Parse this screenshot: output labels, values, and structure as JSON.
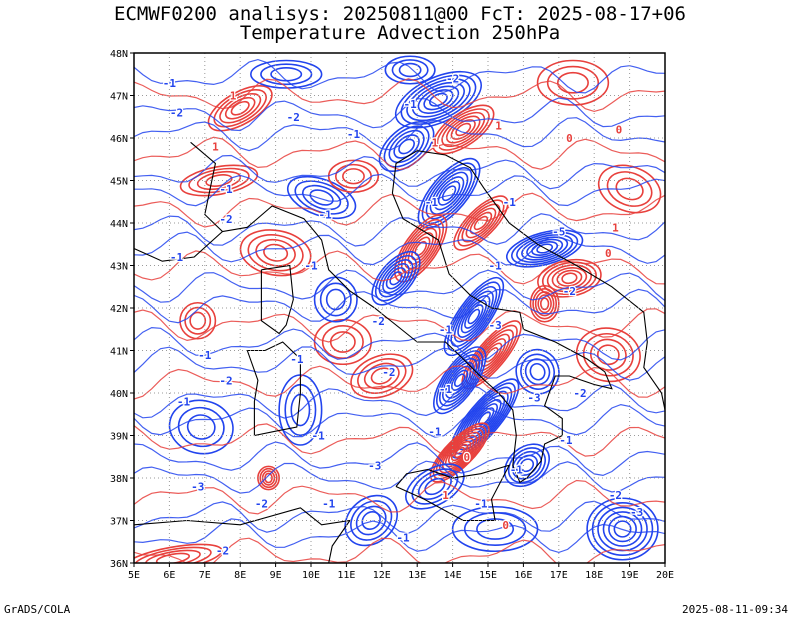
{
  "title_line1": "ECMWF0200 analisys: 20250811@00 FcT: 2025-08-17+06",
  "title_line2": "Temperature Advection 250hPa",
  "footer_left": "GrADS/COLA",
  "footer_right": "2025-08-11-09:34",
  "map": {
    "lon_range": [
      5,
      20
    ],
    "lat_range": [
      36,
      48
    ],
    "lon_ticks": [
      "5E",
      "6E",
      "7E",
      "8E",
      "9E",
      "10E",
      "11E",
      "12E",
      "13E",
      "14E",
      "15E",
      "16E",
      "17E",
      "18E",
      "19E",
      "20E"
    ],
    "lat_ticks": [
      "36N",
      "37N",
      "38N",
      "39N",
      "40N",
      "41N",
      "42N",
      "43N",
      "44N",
      "45N",
      "46N",
      "47N",
      "48N"
    ],
    "grid": "dotted",
    "colors": {
      "positive": "#e8403c",
      "negative": "#2244ee",
      "coast": "#000000",
      "grid": "#9a9a9a"
    }
  },
  "contour_labels": [
    {
      "t": "-1",
      "lon": 6.0,
      "lat": 47.3
    },
    {
      "t": "1",
      "lon": 7.8,
      "lat": 47.0
    },
    {
      "t": "-2",
      "lon": 6.2,
      "lat": 46.6
    },
    {
      "t": "1",
      "lon": 7.3,
      "lat": 45.8
    },
    {
      "t": "-2",
      "lon": 9.5,
      "lat": 46.5
    },
    {
      "t": "-1",
      "lon": 11.2,
      "lat": 46.1
    },
    {
      "t": "-1",
      "lon": 12.8,
      "lat": 46.8
    },
    {
      "t": "-2",
      "lon": 14.0,
      "lat": 47.4
    },
    {
      "t": "1",
      "lon": 15.3,
      "lat": 46.3
    },
    {
      "t": "0",
      "lon": 17.3,
      "lat": 46.0
    },
    {
      "t": "0",
      "lon": 18.7,
      "lat": 46.2
    },
    {
      "t": "1",
      "lon": 13.5,
      "lat": 45.9
    },
    {
      "t": "-1",
      "lon": 7.6,
      "lat": 44.8
    },
    {
      "t": "-2",
      "lon": 7.6,
      "lat": 44.1
    },
    {
      "t": "-1",
      "lon": 10.4,
      "lat": 44.2
    },
    {
      "t": "-1",
      "lon": 13.4,
      "lat": 44.5
    },
    {
      "t": "-1",
      "lon": 15.6,
      "lat": 44.5
    },
    {
      "t": "-5",
      "lon": 17.0,
      "lat": 43.8
    },
    {
      "t": "1",
      "lon": 18.6,
      "lat": 43.9
    },
    {
      "t": "0",
      "lon": 18.4,
      "lat": 43.3
    },
    {
      "t": "-1",
      "lon": 6.2,
      "lat": 43.2
    },
    {
      "t": "-1",
      "lon": 10.0,
      "lat": 43.0
    },
    {
      "t": "-1",
      "lon": 15.2,
      "lat": 43.0
    },
    {
      "t": "-2",
      "lon": 17.3,
      "lat": 42.4
    },
    {
      "t": "-2",
      "lon": 11.9,
      "lat": 41.7
    },
    {
      "t": "-1",
      "lon": 13.8,
      "lat": 41.5
    },
    {
      "t": "-3",
      "lon": 15.2,
      "lat": 41.6
    },
    {
      "t": "-1",
      "lon": 7.0,
      "lat": 40.9
    },
    {
      "t": "-1",
      "lon": 9.6,
      "lat": 40.8
    },
    {
      "t": "-2",
      "lon": 12.2,
      "lat": 40.5
    },
    {
      "t": "-2",
      "lon": 7.6,
      "lat": 40.3
    },
    {
      "t": "-1",
      "lon": 6.4,
      "lat": 39.8
    },
    {
      "t": "-1",
      "lon": 13.8,
      "lat": 40.1
    },
    {
      "t": "-3",
      "lon": 16.3,
      "lat": 39.9
    },
    {
      "t": "-2",
      "lon": 17.6,
      "lat": 40.0
    },
    {
      "t": "-1",
      "lon": 10.2,
      "lat": 39.0
    },
    {
      "t": "-1",
      "lon": 13.5,
      "lat": 39.1
    },
    {
      "t": "-1",
      "lon": 17.2,
      "lat": 38.9
    },
    {
      "t": "-3",
      "lon": 11.8,
      "lat": 38.3
    },
    {
      "t": "0",
      "lon": 14.4,
      "lat": 38.5
    },
    {
      "t": "-1",
      "lon": 15.8,
      "lat": 38.2
    },
    {
      "t": "-3",
      "lon": 6.8,
      "lat": 37.8
    },
    {
      "t": "-2",
      "lon": 8.6,
      "lat": 37.4
    },
    {
      "t": "-1",
      "lon": 10.5,
      "lat": 37.4
    },
    {
      "t": "1",
      "lon": 13.8,
      "lat": 37.6
    },
    {
      "t": "-1",
      "lon": 14.8,
      "lat": 37.4
    },
    {
      "t": "-2",
      "lon": 18.6,
      "lat": 37.6
    },
    {
      "t": "-3",
      "lon": 19.2,
      "lat": 37.2
    },
    {
      "t": "-2",
      "lon": 7.5,
      "lat": 36.3
    },
    {
      "t": "-1",
      "lon": 12.6,
      "lat": 36.6
    },
    {
      "t": "0",
      "lon": 15.5,
      "lat": 36.9
    }
  ]
}
